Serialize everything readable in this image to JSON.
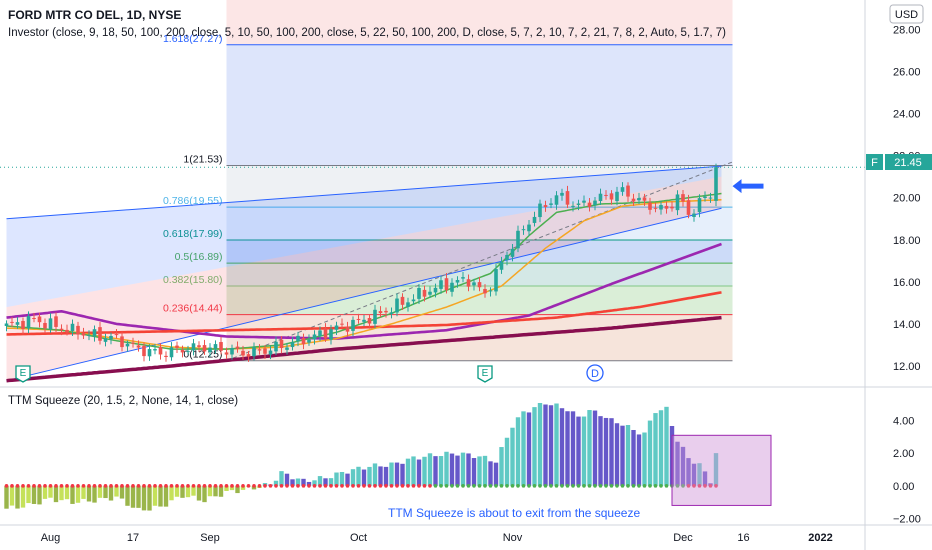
{
  "header": {
    "symbol_title": "FORD MTR CO DEL, 1D, NYSE",
    "investor_indicator": "Investor (close, 9, 18, 50, 100, 200, close, 5, 10, 50, 100, 200, close, 5, 22, 50, 100, 200, D, close, 5, 7, 2, 10, 7, 2, 21, 7, 8, 2, Auto, 5, 1.7, 7)"
  },
  "currency_button": "USD",
  "price_tag": {
    "ticker": "F",
    "value": "21.45"
  },
  "squeeze_title": "TTM Squeeze (20, 1.5, 2, None, 14, 1, close)",
  "annotation": "TTM Squeeze is about to exit from the squeeze",
  "event_markers": [
    {
      "label": "E",
      "day": 3
    },
    {
      "label": "E",
      "day": 87
    },
    {
      "label": "D",
      "day": 107
    }
  ],
  "colors": {
    "candle_up": "#26a69a",
    "candle_down": "#ef5350",
    "ema_orange": "#f5a623",
    "ema_green": "#4caf50",
    "purple": "#9c27b0",
    "red_line": "#f44336",
    "maroon": "#880e4f",
    "arrow": "#2962ff",
    "squeeze_cyan": "#5fc9c4",
    "squeeze_indigo": "#6658c9",
    "squeeze_olive": "#9ab54a",
    "squeeze_lime": "#c5e15a"
  },
  "chart_data": [
    {
      "type": "candlestick",
      "title": "FORD MTR CO DEL, 1D, NYSE",
      "ylim": [
        11.0,
        29.4
      ],
      "y_ticks": [
        "12.00",
        "14.00",
        "16.00",
        "18.00",
        "20.00",
        "22.00",
        "24.00",
        "26.00",
        "28.00"
      ],
      "x_ticks": [
        {
          "label": "Aug",
          "day": 8
        },
        {
          "label": "17",
          "day": 23
        },
        {
          "label": "Sep",
          "day": 37
        },
        {
          "label": "Oct",
          "day": 64
        },
        {
          "label": "Nov",
          "day": 92
        },
        {
          "label": "Dec",
          "day": 123
        },
        {
          "label": "16",
          "day": 134
        },
        {
          "label": "2022",
          "day": 148
        }
      ],
      "last_price": 21.45,
      "fibonacci": [
        {
          "ratio": "1.618",
          "price": "27.27",
          "value": 27.27
        },
        {
          "ratio": "1",
          "price": "21.53",
          "value": 21.53
        },
        {
          "ratio": "0.786",
          "price": "19.55",
          "value": 19.55
        },
        {
          "ratio": "0.618",
          "price": "17.99",
          "value": 17.99
        },
        {
          "ratio": "0.5",
          "price": "16.89",
          "value": 16.89
        },
        {
          "ratio": "0.382",
          "price": "15.80",
          "value": 15.8
        },
        {
          "ratio": "0.236",
          "price": "14.44",
          "value": 14.44
        },
        {
          "ratio": "0",
          "price": "12.25",
          "value": 12.25
        }
      ],
      "fib_range_days": [
        40,
        132
      ],
      "channel": {
        "start_day": 0,
        "end_day": 130,
        "lower": [
          11.3,
          19.5
        ],
        "mid": [
          14.8,
          21.0
        ],
        "upper": [
          19.0,
          21.5
        ]
      },
      "close_anchors": [
        [
          0,
          13.9
        ],
        [
          5,
          14.2
        ],
        [
          10,
          13.8
        ],
        [
          15,
          13.5
        ],
        [
          20,
          13.3
        ],
        [
          24,
          12.8
        ],
        [
          28,
          12.6
        ],
        [
          32,
          12.8
        ],
        [
          36,
          12.9
        ],
        [
          40,
          12.75
        ],
        [
          44,
          12.6
        ],
        [
          48,
          12.8
        ],
        [
          52,
          13.1
        ],
        [
          56,
          13.4
        ],
        [
          60,
          13.8
        ],
        [
          64,
          14.1
        ],
        [
          68,
          14.5
        ],
        [
          72,
          15.0
        ],
        [
          76,
          15.5
        ],
        [
          80,
          15.9
        ],
        [
          84,
          16.1
        ],
        [
          87,
          15.4
        ],
        [
          89,
          16.4
        ],
        [
          92,
          17.8
        ],
        [
          96,
          19.2
        ],
        [
          100,
          20.1
        ],
        [
          104,
          19.6
        ],
        [
          108,
          20.0
        ],
        [
          112,
          20.3
        ],
        [
          116,
          19.7
        ],
        [
          120,
          19.4
        ],
        [
          122,
          20.1
        ],
        [
          124,
          19.2
        ],
        [
          126,
          19.8
        ],
        [
          128,
          20.1
        ],
        [
          129,
          21.45
        ]
      ],
      "moving_averages": [
        {
          "name": "purple-ma",
          "color": "#9c27b0",
          "points": [
            [
              0,
              14.3
            ],
            [
              10,
              14.6
            ],
            [
              20,
              14.0
            ],
            [
              40,
              13.4
            ],
            [
              60,
              13.3
            ],
            [
              80,
              13.7
            ],
            [
              95,
              14.4
            ],
            [
              110,
              15.9
            ],
            [
              130,
              17.8
            ]
          ]
        },
        {
          "name": "red-ma",
          "color": "#f44336",
          "points": [
            [
              0,
              13.5
            ],
            [
              20,
              13.6
            ],
            [
              40,
              13.7
            ],
            [
              60,
              13.8
            ],
            [
              80,
              13.95
            ],
            [
              100,
              14.3
            ],
            [
              115,
              14.8
            ],
            [
              130,
              15.5
            ]
          ]
        },
        {
          "name": "maroon-ma",
          "color": "#880e4f",
          "points": [
            [
              0,
              11.3
            ],
            [
              30,
              12.0
            ],
            [
              60,
              12.8
            ],
            [
              90,
              13.4
            ],
            [
              110,
              13.8
            ],
            [
              130,
              14.3
            ]
          ]
        },
        {
          "name": "orange-ema",
          "color": "#f5a623",
          "points": [
            [
              0,
              13.8
            ],
            [
              10,
              13.7
            ],
            [
              20,
              13.3
            ],
            [
              30,
              12.9
            ],
            [
              40,
              12.8
            ],
            [
              50,
              12.9
            ],
            [
              60,
              13.3
            ],
            [
              70,
              14.0
            ],
            [
              80,
              14.8
            ],
            [
              90,
              15.8
            ],
            [
              98,
              17.6
            ],
            [
              105,
              18.9
            ],
            [
              112,
              19.6
            ],
            [
              120,
              19.8
            ],
            [
              130,
              19.9
            ]
          ]
        },
        {
          "name": "green-ema",
          "color": "#4caf50",
          "points": [
            [
              0,
              13.9
            ],
            [
              10,
              13.7
            ],
            [
              20,
              13.2
            ],
            [
              30,
              12.8
            ],
            [
              40,
              12.8
            ],
            [
              50,
              13.0
            ],
            [
              60,
              13.6
            ],
            [
              70,
              14.5
            ],
            [
              80,
              15.6
            ],
            [
              88,
              16.4
            ],
            [
              95,
              18.2
            ],
            [
              100,
              19.3
            ],
            [
              108,
              19.7
            ],
            [
              118,
              19.8
            ],
            [
              130,
              20.2
            ]
          ]
        }
      ]
    },
    {
      "type": "bar",
      "title": "TTM Squeeze (20, 1.5, 2, None, 14, 1, close)",
      "ylim": [
        -2.4,
        6.0
      ],
      "y_ticks": [
        "4.00",
        "2.00",
        "0.00",
        "−2.00"
      ],
      "series": [
        {
          "name": "momentum",
          "days": [
            0,
            4,
            8,
            12,
            16,
            20,
            24,
            28,
            32,
            36,
            40,
            44,
            48,
            50,
            54,
            58,
            62,
            66,
            70,
            74,
            78,
            82,
            86,
            89,
            92,
            94,
            96,
            98,
            100,
            102,
            104,
            106,
            108,
            110,
            112,
            114,
            116,
            118,
            120,
            122,
            124,
            126,
            128,
            129
          ],
          "values": [
            -1.4,
            -1.2,
            -0.8,
            -1.0,
            -0.9,
            -0.7,
            -1.5,
            -1.3,
            -0.6,
            -0.9,
            -0.4,
            -0.2,
            0.1,
            0.8,
            0.3,
            0.5,
            0.9,
            1.2,
            1.3,
            1.7,
            1.9,
            2.0,
            1.8,
            1.5,
            3.7,
            4.5,
            4.8,
            5.1,
            4.9,
            4.7,
            4.2,
            4.6,
            4.4,
            4.0,
            3.8,
            3.4,
            3.2,
            4.6,
            4.7,
            2.8,
            1.7,
            1.3,
            0.3,
            2.0
          ]
        }
      ]
    }
  ]
}
